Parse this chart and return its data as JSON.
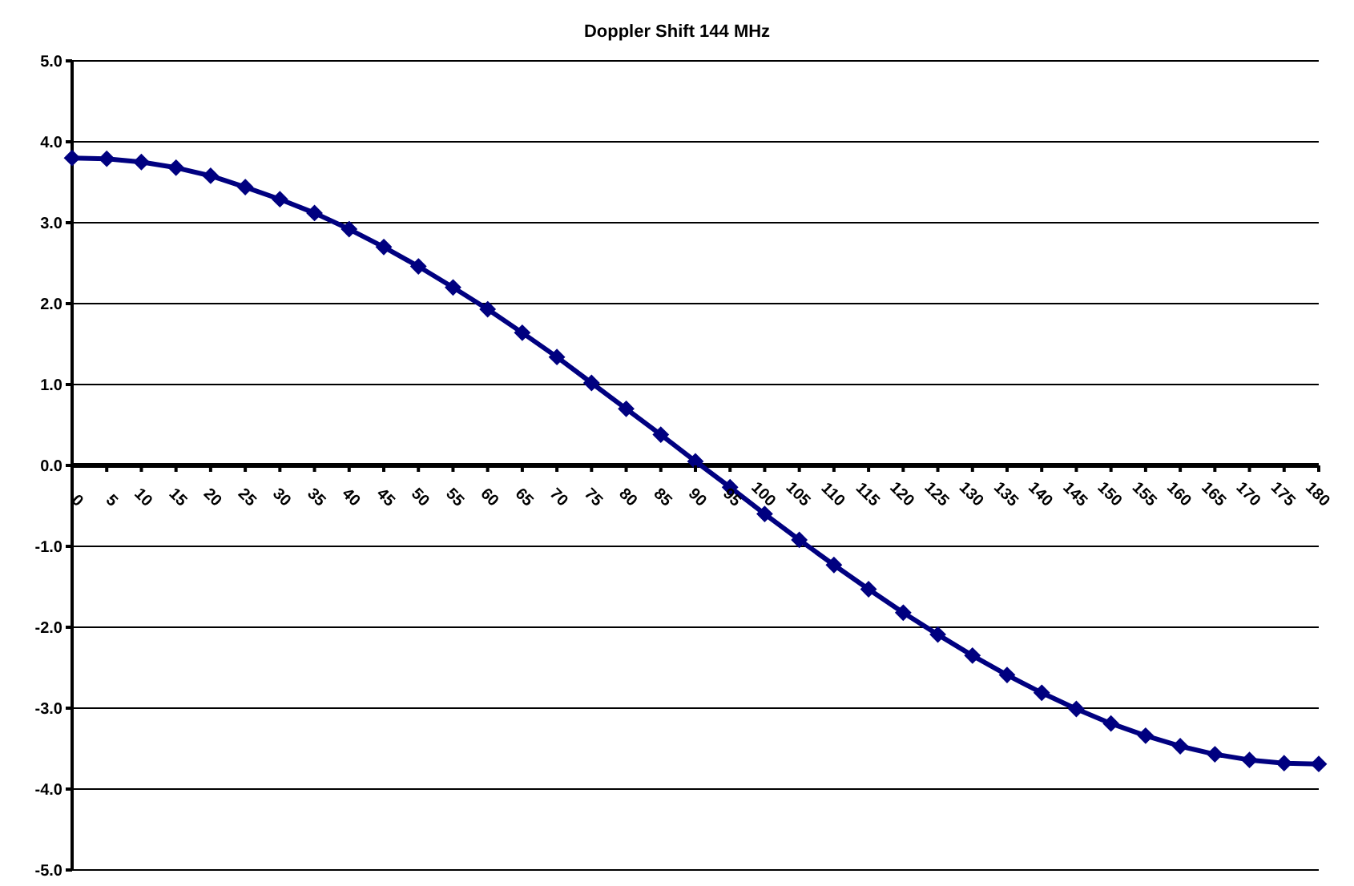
{
  "chart_data": {
    "type": "line",
    "title": "Doppler Shift 144 MHz",
    "categories": [
      "0",
      "5",
      "10",
      "15",
      "20",
      "25",
      "30",
      "35",
      "40",
      "45",
      "50",
      "55",
      "60",
      "65",
      "70",
      "75",
      "80",
      "85",
      "90",
      "95",
      "100",
      "105",
      "110",
      "115",
      "120",
      "125",
      "130",
      "135",
      "140",
      "145",
      "150",
      "155",
      "160",
      "165",
      "170",
      "175",
      "180"
    ],
    "series": [
      {
        "color": "#000080",
        "values": [
          3.8,
          3.79,
          3.75,
          3.68,
          3.58,
          3.44,
          3.29,
          3.12,
          2.92,
          2.7,
          2.46,
          2.2,
          1.93,
          1.64,
          1.34,
          1.02,
          0.7,
          0.38,
          0.05,
          -0.27,
          -0.6,
          -0.92,
          -1.23,
          -1.53,
          -1.82,
          -2.09,
          -2.35,
          -2.59,
          -2.81,
          -3.01,
          -3.19,
          -3.34,
          -3.47,
          -3.57,
          -3.64,
          -3.68,
          -3.69
        ]
      }
    ],
    "ylim": [
      -5,
      5
    ],
    "yticks": [
      {
        "value": -5,
        "label": "-5.0"
      },
      {
        "value": -4,
        "label": "-4.0"
      },
      {
        "value": -3,
        "label": "-3.0"
      },
      {
        "value": -2,
        "label": "-2.0"
      },
      {
        "value": -1,
        "label": "-1.0"
      },
      {
        "value": 0,
        "label": "0.0"
      },
      {
        "value": 1,
        "label": "1.0"
      },
      {
        "value": 2,
        "label": "2.0"
      },
      {
        "value": 3,
        "label": "3.0"
      },
      {
        "value": 4,
        "label": "4.0"
      },
      {
        "value": 5,
        "label": "5.0"
      }
    ],
    "grid": "y",
    "legend": false,
    "marker": "diamond",
    "line_style": "solid"
  }
}
